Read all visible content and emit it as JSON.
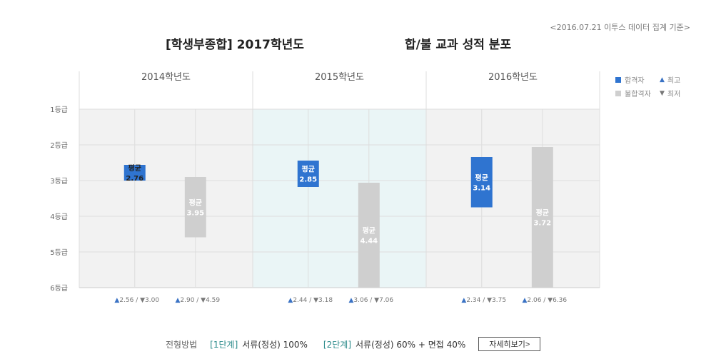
{
  "header": {
    "source_note": "<2016.07.21 이투스 데이터 집계 기준>",
    "title_left": "[학생부종합] 2017학년도",
    "title_right": "합/불 교과 성적 분포"
  },
  "legend": {
    "pass_label": "합격자",
    "fail_label": "불합격자",
    "max_label": "최고",
    "min_label": "최저"
  },
  "colors": {
    "pass": "#2f74d0",
    "fail": "#cfcfcf",
    "max_marker": "#3a72c4",
    "min_marker": "#777777",
    "highlight_bg": "#eaf5f6"
  },
  "chart_data": {
    "type": "range_bar",
    "groups": [
      "2014학년도",
      "2015학년도",
      "2016학년도"
    ],
    "y_axis": {
      "ticks": [
        "1등급",
        "2등급",
        "3등급",
        "4등급",
        "5등급",
        "6등급"
      ],
      "range": [
        1,
        6
      ],
      "inverted": true
    },
    "avg_label": "평균",
    "series": [
      {
        "name": "합격자",
        "ranges": [
          [
            2.56,
            3.0
          ],
          [
            2.44,
            3.18
          ],
          [
            2.34,
            3.75
          ]
        ],
        "avg": [
          "2.76",
          "2.85",
          "3.14"
        ],
        "range_text": [
          "2.56 / ▼3.00",
          "2.44 / ▼3.18",
          "2.34 / ▼3.75"
        ]
      },
      {
        "name": "불합격자",
        "ranges": [
          [
            2.9,
            4.59
          ],
          [
            3.06,
            7.06
          ],
          [
            2.06,
            6.36
          ]
        ],
        "avg": [
          "3.95",
          "4.44",
          "3.72"
        ],
        "range_text": [
          "2.90 / ▼4.59",
          "3.06 / ▼7.06",
          "2.06 / ▼6.36"
        ]
      }
    ]
  },
  "footer": {
    "method_label": "전형방법",
    "stage1_tag": "[1단계]",
    "stage1_desc": "서류(정성) 100%",
    "stage2_tag": "[2단계]",
    "stage2_desc": "서류(정성) 60% + 면접 40%",
    "detail_button": "자세히보기>"
  }
}
